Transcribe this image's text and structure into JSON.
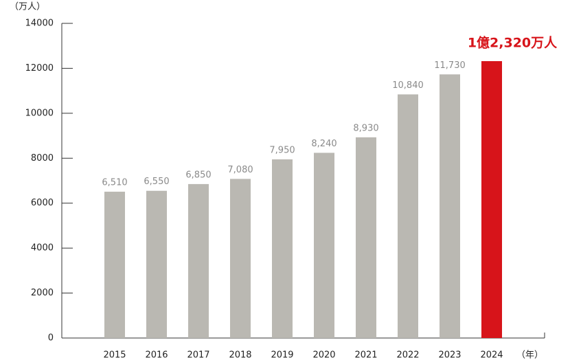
{
  "chart_data": {
    "type": "bar",
    "y_axis_label": "（万人）",
    "x_axis_label": "（年）",
    "categories": [
      "2015",
      "2016",
      "2017",
      "2018",
      "2019",
      "2020",
      "2021",
      "2022",
      "2023",
      "2024"
    ],
    "values": [
      6510,
      6550,
      6850,
      7080,
      7950,
      8240,
      8930,
      10840,
      11730,
      12320
    ],
    "value_labels": [
      "6,510",
      "6,550",
      "6,850",
      "7,080",
      "7,950",
      "8,240",
      "8,930",
      "10,840",
      "11,730",
      "1億2,320万人"
    ],
    "colors": [
      "#bab8b2",
      "#bab8b2",
      "#bab8b2",
      "#bab8b2",
      "#bab8b2",
      "#bab8b2",
      "#bab8b2",
      "#bab8b2",
      "#bab8b2",
      "#d7141a"
    ],
    "highlight_label_color": "#d7141a",
    "ylim": [
      0,
      14000
    ],
    "yticks": [
      0,
      2000,
      4000,
      6000,
      8000,
      10000,
      12000,
      14000
    ]
  }
}
